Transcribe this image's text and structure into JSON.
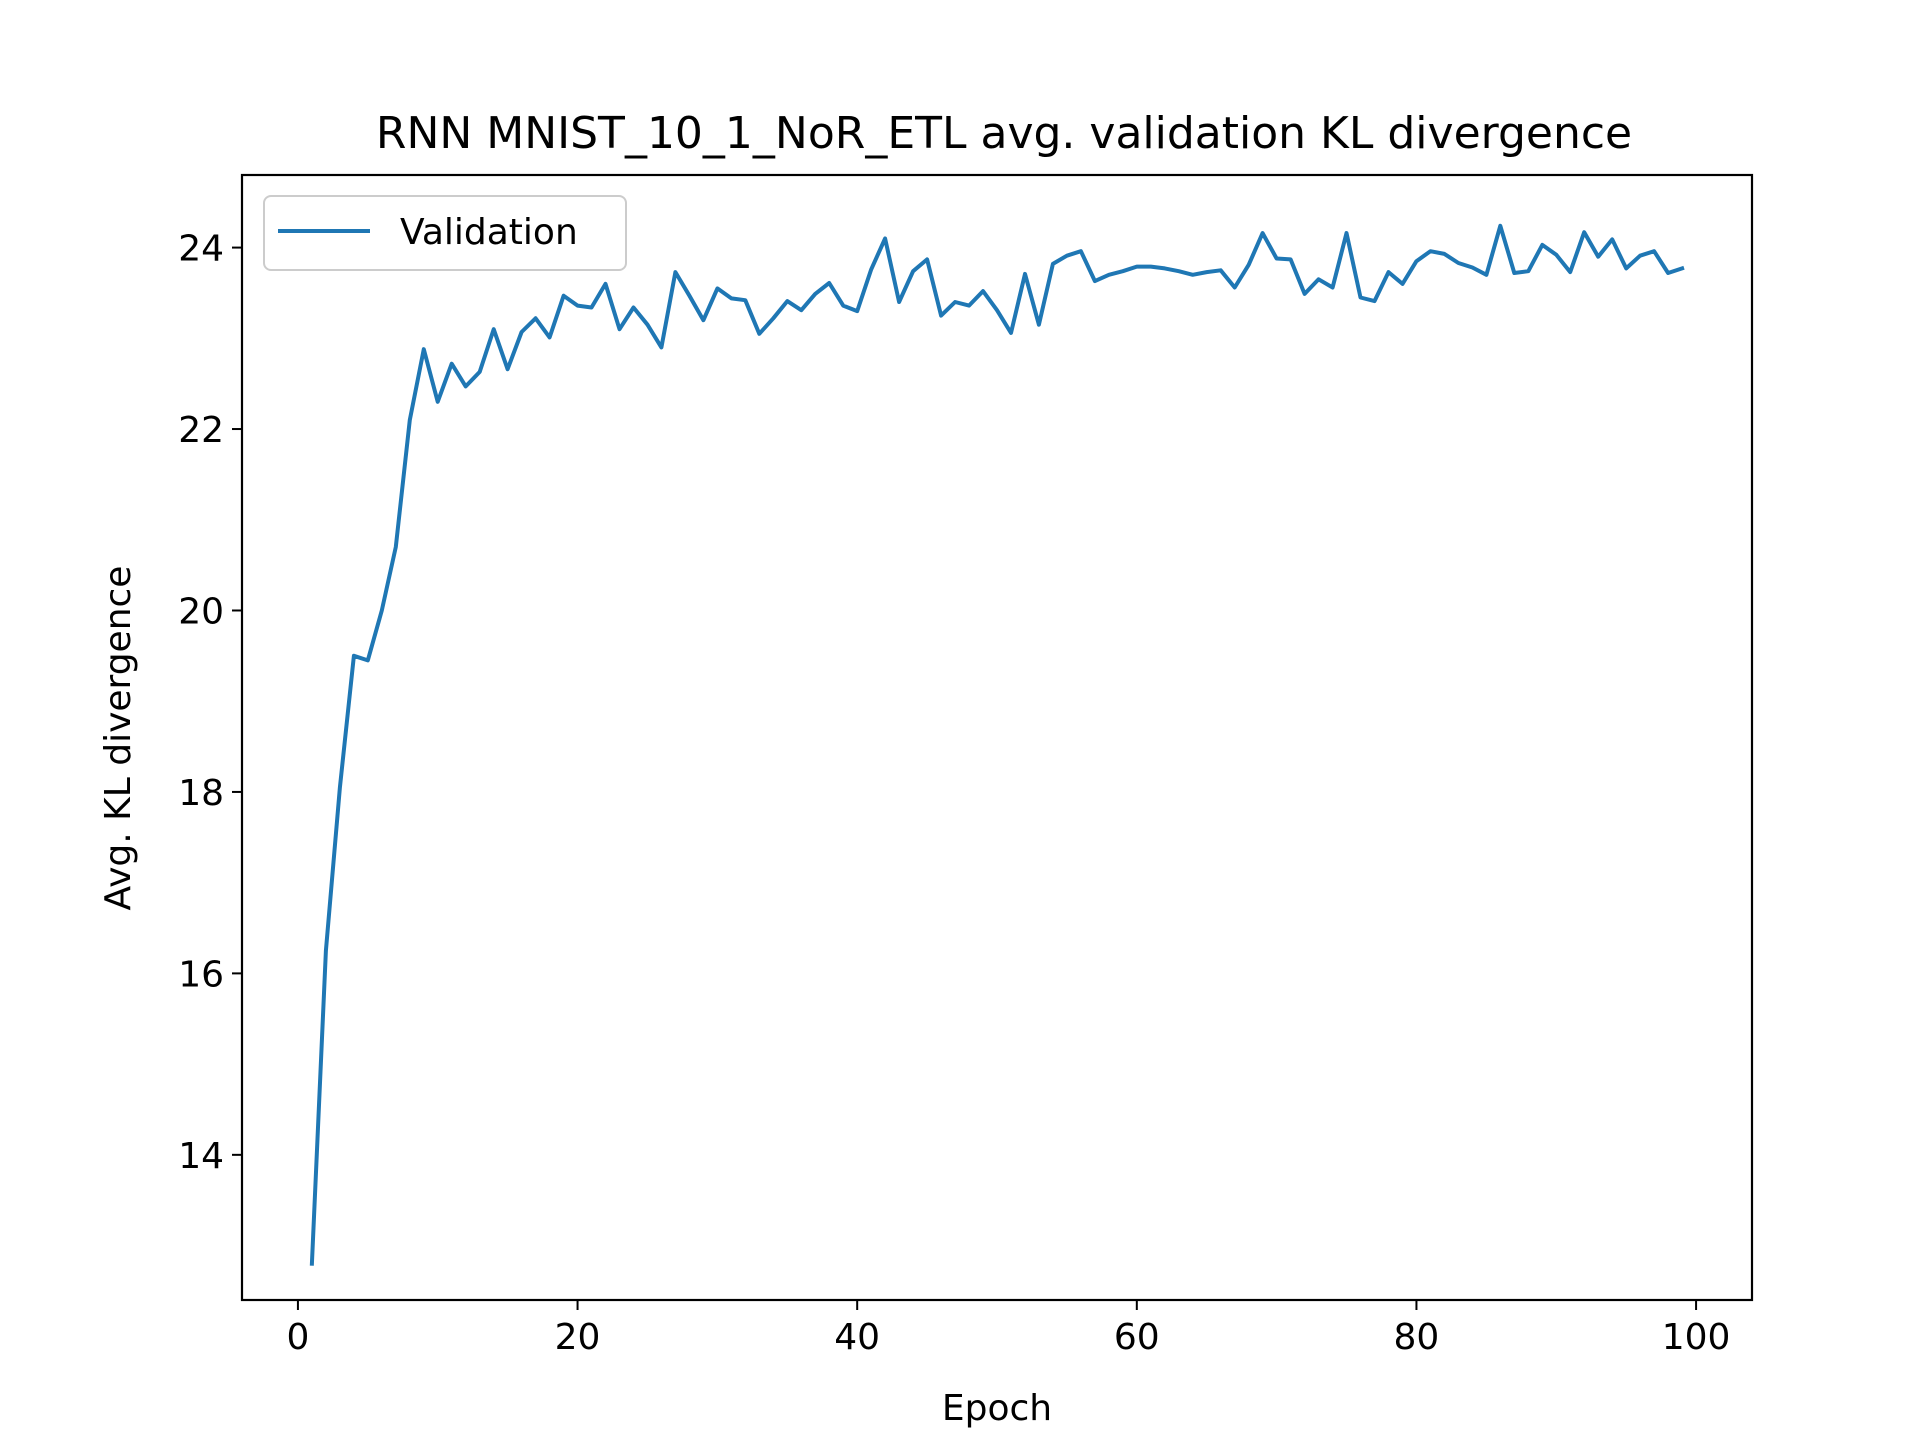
{
  "chart_data": {
    "type": "line",
    "title": "RNN MNIST_10_1_NoR_ETL avg. validation KL divergence",
    "xlabel": "Epoch",
    "ylabel": "Avg. KL divergence",
    "xlim": [
      -4,
      104
    ],
    "ylim": [
      12.4,
      24.8
    ],
    "xticks": [
      0,
      20,
      40,
      60,
      80,
      100
    ],
    "yticks": [
      14,
      16,
      18,
      20,
      22,
      24
    ],
    "grid": false,
    "legend_position": "top-left",
    "series": [
      {
        "name": "Validation",
        "color": "#1f77b4",
        "x": [
          1,
          2,
          3,
          4,
          5,
          6,
          7,
          8,
          9,
          10,
          11,
          12,
          13,
          14,
          15,
          16,
          17,
          18,
          19,
          20,
          21,
          22,
          23,
          24,
          25,
          26,
          27,
          28,
          29,
          30,
          31,
          32,
          33,
          34,
          35,
          36,
          37,
          38,
          39,
          40,
          41,
          42,
          43,
          44,
          45,
          46,
          47,
          48,
          49,
          50,
          51,
          52,
          53,
          54,
          55,
          56,
          57,
          58,
          59,
          60,
          61,
          62,
          63,
          64,
          65,
          66,
          67,
          68,
          69,
          70,
          71,
          72,
          73,
          74,
          75,
          76,
          77,
          78,
          79,
          80,
          81,
          82,
          83,
          84,
          85,
          86,
          87,
          88,
          89,
          90,
          91,
          92,
          93,
          94,
          95,
          96,
          97,
          98,
          99
        ],
        "y": [
          12.8,
          16.25,
          18.05,
          19.5,
          19.45,
          20.0,
          20.7,
          22.1,
          22.88,
          22.3,
          22.72,
          22.47,
          22.63,
          23.1,
          22.66,
          23.07,
          23.22,
          23.01,
          23.47,
          23.36,
          23.34,
          23.6,
          23.1,
          23.34,
          23.15,
          22.9,
          23.73,
          23.47,
          23.2,
          23.55,
          23.44,
          23.42,
          23.05,
          23.22,
          23.41,
          23.31,
          23.49,
          23.61,
          23.36,
          23.3,
          23.76,
          24.1,
          23.4,
          23.74,
          23.87,
          23.25,
          23.4,
          23.36,
          23.52,
          23.31,
          23.06,
          23.71,
          23.15,
          23.82,
          23.91,
          23.96,
          23.63,
          23.7,
          23.74,
          23.79,
          23.79,
          23.77,
          23.74,
          23.7,
          23.73,
          23.75,
          23.56,
          23.81,
          24.16,
          23.88,
          23.87,
          23.49,
          23.65,
          23.56,
          24.16,
          23.45,
          23.41,
          23.73,
          23.6,
          23.85,
          23.96,
          23.93,
          23.83,
          23.78,
          23.7,
          24.24,
          23.72,
          23.74,
          24.03,
          23.92,
          23.73,
          24.17,
          23.9,
          24.09,
          23.77,
          23.91,
          23.96,
          23.72,
          23.77
        ]
      }
    ]
  }
}
